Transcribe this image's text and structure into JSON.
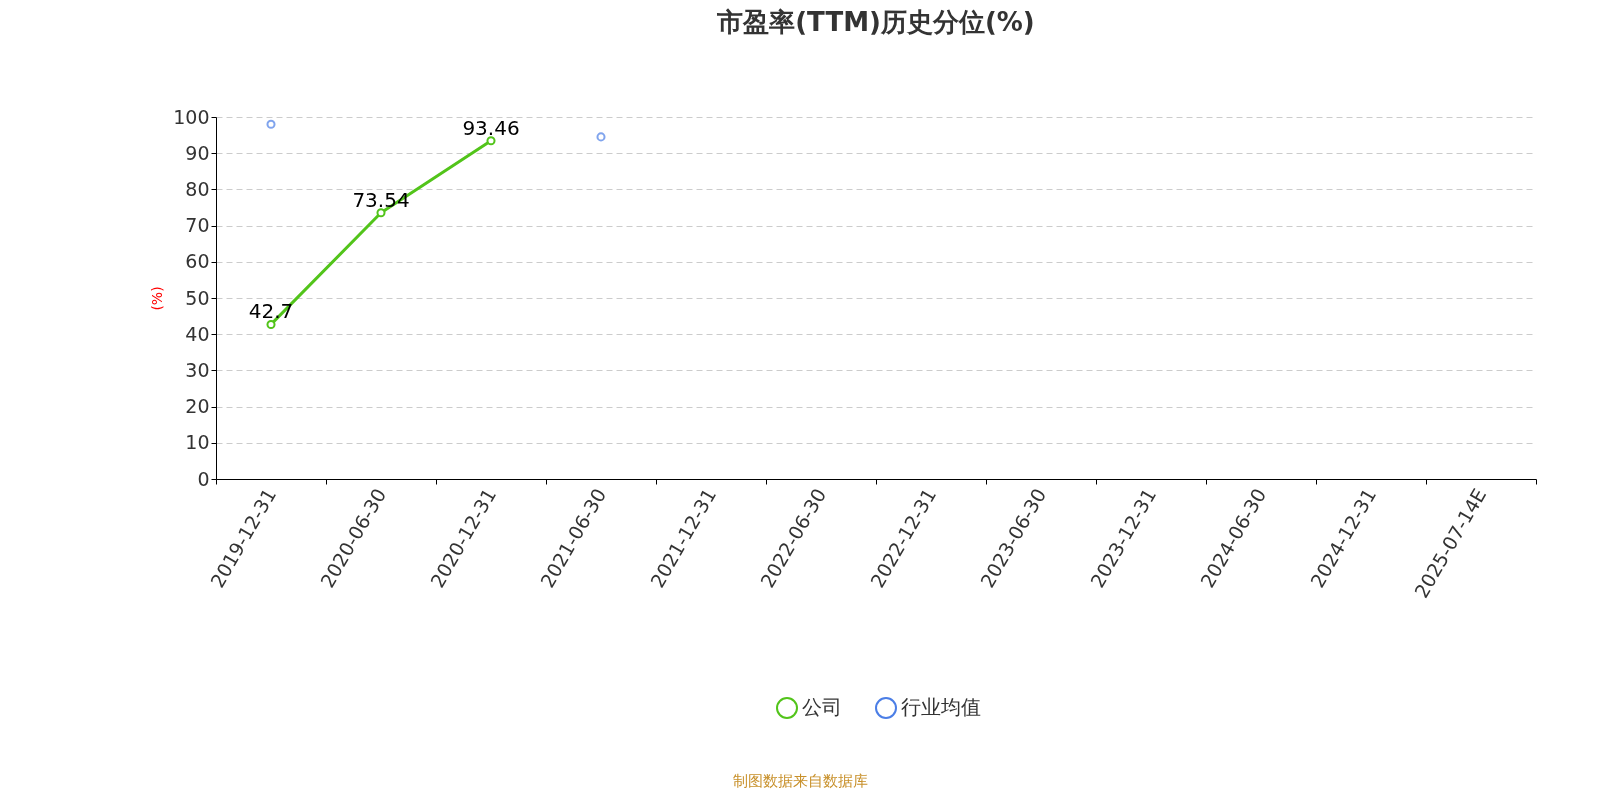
{
  "chart_data": {
    "type": "line",
    "title": "市盈率(TTM)历史分位(%)",
    "ylabel": "(%)",
    "categories": [
      "2019-12-31",
      "2020-06-30",
      "2020-12-31",
      "2021-06-30",
      "2021-12-31",
      "2022-06-30",
      "2022-12-31",
      "2023-06-30",
      "2023-12-31",
      "2024-06-30",
      "2024-12-31",
      "2025-07-14E"
    ],
    "series": [
      {
        "name": "公司",
        "color": "#52c41a",
        "values": [
          42.7,
          73.54,
          93.46,
          null,
          null,
          null,
          null,
          null,
          null,
          null,
          null,
          null
        ],
        "value_labels": [
          "42.7",
          "73.54",
          "93.46",
          null,
          null,
          null,
          null,
          null,
          null,
          null,
          null,
          null
        ]
      },
      {
        "name": "行业均值",
        "type": "scatter",
        "color": "#4b7ee6",
        "values": [
          98,
          null,
          null,
          94.5,
          null,
          null,
          null,
          null,
          null,
          null,
          null,
          null
        ]
      }
    ],
    "ylim": [
      0,
      100
    ],
    "yticks": [
      0,
      10,
      20,
      30,
      40,
      50,
      60,
      70,
      80,
      90,
      100
    ],
    "grid": "y",
    "legend": "bottom",
    "marker": "circle",
    "line_style": "solid",
    "annotations": [
      "制图数据来自数据库"
    ]
  }
}
